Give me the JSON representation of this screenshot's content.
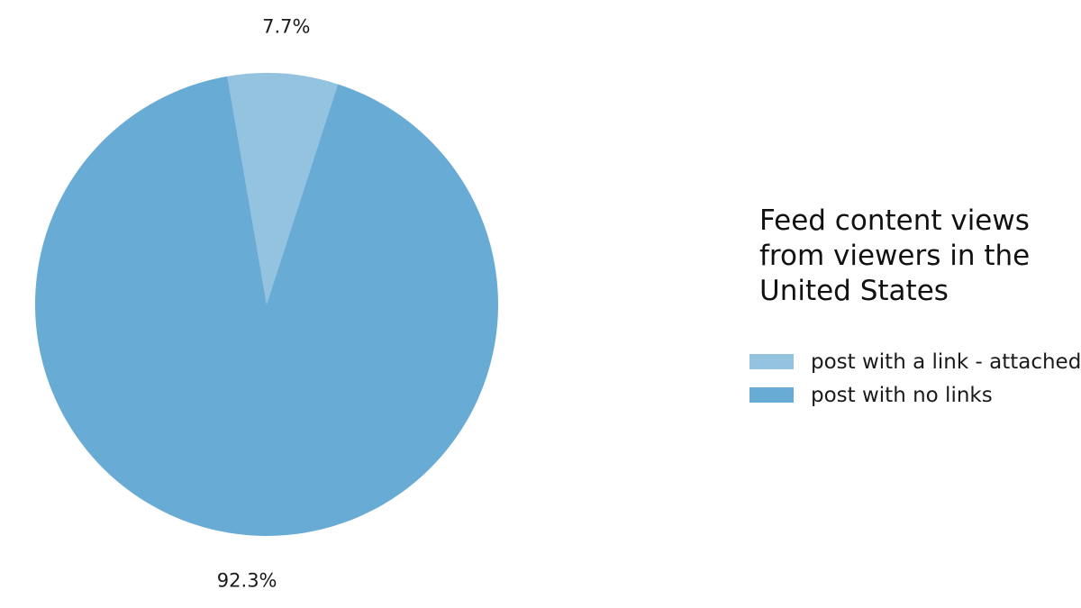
{
  "chart_data": {
    "type": "pie",
    "title": "",
    "legend": {
      "title": "Feed content views from viewers in the United States",
      "placement": "right"
    },
    "slices": [
      {
        "name": "post with a link - attached",
        "value": 7.7,
        "label": "7.7%",
        "color": "#94c3e0"
      },
      {
        "name": "post with no links",
        "value": 92.3,
        "label": "92.3%",
        "color": "#68abd5"
      }
    ],
    "start_angle_deg": -9.8,
    "direction": "clockwise"
  }
}
